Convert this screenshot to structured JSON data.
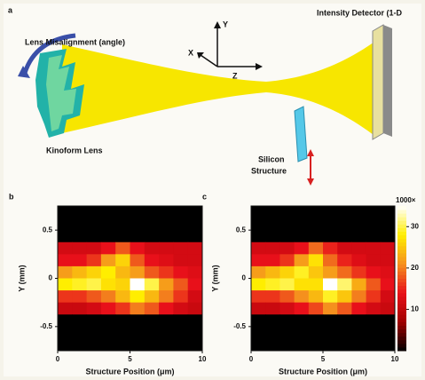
{
  "panel_a": {
    "label": "a",
    "lens_misalignment": "Lens Misalignment (angle)",
    "lens": "Kinoform Lens",
    "axis_y": "Y",
    "axis_x": "X",
    "axis_z": "Z",
    "detector": "Intensity Detector (1-D",
    "structure": [
      "Silicon",
      "Structure"
    ]
  },
  "chart_data": [
    {
      "type": "heatmap",
      "panel_label": "b",
      "xlabel": "Structure Position (μm)",
      "ylabel": "Y (mm)",
      "xlim": [
        0,
        10
      ],
      "ylim": [
        -0.75,
        0.75
      ],
      "xticks": [
        0,
        5,
        10
      ],
      "yticks": [
        0.5,
        0,
        -0.5
      ],
      "clim": [
        0,
        35
      ],
      "colormap": [
        "#000000",
        "#a00000",
        "#e8101a",
        "#f5901e",
        "#ffee00",
        "#ffffff"
      ],
      "values": [
        [
          0,
          0,
          0,
          0,
          0,
          0,
          0,
          0,
          0,
          0
        ],
        [
          0,
          0,
          0,
          0,
          0,
          0,
          0,
          0,
          0,
          0
        ],
        [
          0,
          0,
          0,
          0,
          0,
          0,
          0,
          0,
          0,
          0
        ],
        [
          12,
          12,
          12,
          14,
          18,
          14,
          12,
          12,
          12,
          12
        ],
        [
          14,
          14,
          16,
          22,
          26,
          18,
          14,
          13,
          12,
          12
        ],
        [
          22,
          24,
          26,
          28,
          24,
          22,
          18,
          16,
          14,
          13
        ],
        [
          28,
          29,
          30,
          27,
          26,
          36,
          30,
          22,
          18,
          14
        ],
        [
          16,
          16,
          18,
          20,
          24,
          28,
          24,
          20,
          16,
          12
        ],
        [
          11,
          11,
          12,
          14,
          16,
          20,
          18,
          14,
          12,
          11
        ],
        [
          0,
          0,
          0,
          0,
          0,
          0,
          0,
          0,
          0,
          0
        ],
        [
          0,
          0,
          0,
          0,
          0,
          0,
          0,
          0,
          0,
          0
        ],
        [
          0,
          0,
          0,
          0,
          0,
          0,
          0,
          0,
          0,
          0
        ]
      ]
    },
    {
      "type": "heatmap",
      "panel_label": "c",
      "xlabel": "Structure Position (μm)",
      "ylabel": "Y (mm)",
      "xlim": [
        0,
        10
      ],
      "ylim": [
        -0.75,
        0.75
      ],
      "xticks": [
        0,
        5,
        10
      ],
      "yticks": [
        0.5,
        0,
        -0.5
      ],
      "clim": [
        0,
        35
      ],
      "colormap": [
        "#000000",
        "#a00000",
        "#e8101a",
        "#f5901e",
        "#ffee00",
        "#ffffff"
      ],
      "colorbar_label": "1000×",
      "colorbar_ticks": [
        10,
        20,
        30
      ],
      "values": [
        [
          0,
          0,
          0,
          0,
          0,
          0,
          0,
          0,
          0,
          0
        ],
        [
          0,
          0,
          0,
          0,
          0,
          0,
          0,
          0,
          0,
          0
        ],
        [
          0,
          0,
          0,
          0,
          0,
          0,
          0,
          0,
          0,
          0
        ],
        [
          12,
          12,
          12,
          14,
          19,
          15,
          12,
          12,
          12,
          12
        ],
        [
          14,
          14,
          16,
          22,
          27,
          19,
          15,
          13,
          12,
          12
        ],
        [
          22,
          24,
          26,
          29,
          25,
          22,
          19,
          16,
          14,
          13
        ],
        [
          28,
          29,
          30,
          27,
          27,
          35,
          31,
          23,
          18,
          14
        ],
        [
          16,
          16,
          18,
          21,
          24,
          29,
          25,
          20,
          16,
          12
        ],
        [
          11,
          11,
          12,
          14,
          17,
          21,
          18,
          14,
          12,
          11
        ],
        [
          0,
          0,
          0,
          0,
          0,
          0,
          0,
          0,
          0,
          0
        ],
        [
          0,
          0,
          0,
          0,
          0,
          0,
          0,
          0,
          0,
          0
        ],
        [
          0,
          0,
          0,
          0,
          0,
          0,
          0,
          0,
          0,
          0
        ]
      ]
    }
  ]
}
